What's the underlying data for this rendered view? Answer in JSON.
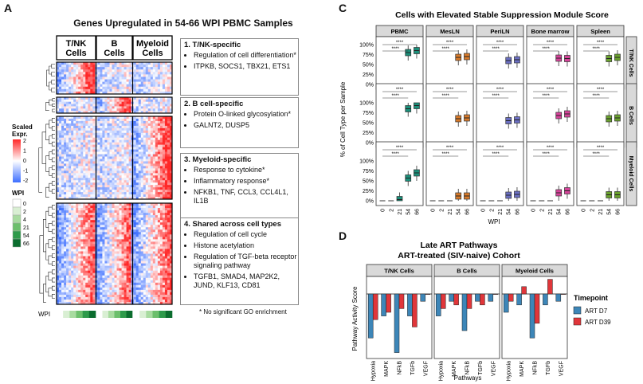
{
  "panels": {
    "a": "A",
    "c": "C",
    "d": "D"
  },
  "heatmap": {
    "title": "Genes Upregulated in 54-66 WPI PBMC Samples",
    "col_groups": [
      "T/NK Cells",
      "B Cells",
      "Myeloid Cells"
    ],
    "legend_title": "Scaled Expr.",
    "legend_ticks": [
      "2",
      "1",
      "0",
      "-1",
      "-2"
    ],
    "wpi_title": "WPI",
    "wpi_levels": [
      "0",
      "2",
      "4",
      "21",
      "54",
      "66"
    ],
    "wpi_colors": [
      "#ffffff",
      "#d9efd3",
      "#a8dba0",
      "#6cbf6c",
      "#2e9a4a",
      "#0b6d2e"
    ],
    "wpi_row_label": "WPI",
    "footnote": "* No significant GO enrichment",
    "sections": [
      {
        "title": "1. T/NK-specific",
        "items": [
          "Regulation of cell differentiation*",
          "ITPKB, SOCS1, TBX21, ETS1"
        ]
      },
      {
        "title": "2. B cell-specific",
        "items": [
          "Protein O-linked glycosylation*",
          "GALNT2, DUSP5"
        ]
      },
      {
        "title": "3. Myeloid-specific",
        "items": [
          "Response to cytokine*",
          "Inflammatory response*",
          "NFKB1, TNF, CCL3, CCL4L1, IL1B"
        ]
      },
      {
        "title": "4. Shared across cell types",
        "items": [
          "Regulation of cell cycle",
          "Histone acetylation",
          "Regulation of TGF-beta receptor signaling pathway",
          "TGFB1, SMAD4, MAP2K2, JUND, KLF13, CD81"
        ]
      }
    ]
  },
  "chart_data": [
    {
      "type": "box",
      "title": "Cells with Elevated Stable Suppression Module Score",
      "xlabel": "WPI",
      "ylabel": "% of Cell Type per Sample",
      "x_categories": [
        "0",
        "2",
        "21",
        "54",
        "66"
      ],
      "y_ticks": [
        "0%",
        "25%",
        "50%",
        "75%",
        "100%"
      ],
      "ylim": [
        0,
        100
      ],
      "columns": [
        "PBMC",
        "MesLN",
        "PeriLN",
        "Bone marrow",
        "Spleen"
      ],
      "rows": [
        "T/NK Cells",
        "B Cells",
        "Myeloid Cells"
      ],
      "column_colors": [
        "#1b8f7a",
        "#d87a2a",
        "#6b6fc2",
        "#d6449a",
        "#6aa12e"
      ],
      "significance": "****",
      "grid": false,
      "medians": {
        "T/NK Cells": {
          "PBMC": [
            0,
            0,
            0,
            80,
            85
          ],
          "MesLN": [
            0,
            0,
            0,
            68,
            70
          ],
          "PeriLN": [
            0,
            0,
            0,
            60,
            62
          ],
          "Bone marrow": [
            0,
            0,
            0,
            66,
            65
          ],
          "Spleen": [
            0,
            0,
            0,
            65,
            68
          ]
        },
        "B Cells": {
          "PBMC": [
            0,
            0,
            0,
            85,
            93
          ],
          "MesLN": [
            0,
            0,
            0,
            60,
            62
          ],
          "PeriLN": [
            0,
            0,
            0,
            55,
            57
          ],
          "Bone marrow": [
            0,
            0,
            0,
            68,
            72
          ],
          "Spleen": [
            0,
            0,
            0,
            60,
            62
          ]
        },
        "Myeloid Cells": {
          "PBMC": [
            0,
            0,
            3,
            57,
            70
          ],
          "MesLN": [
            0,
            0,
            0,
            12,
            12
          ],
          "PeriLN": [
            0,
            0,
            0,
            14,
            16
          ],
          "Bone marrow": [
            0,
            0,
            0,
            20,
            25
          ],
          "Spleen": [
            0,
            0,
            0,
            15,
            15
          ]
        }
      }
    },
    {
      "type": "bar",
      "title": "Late ART Pathways",
      "subtitle": "ART-treated (SIV-naive) Cohort",
      "xlabel": "Pathways",
      "ylabel": "Pathway Activity Score",
      "categories": [
        "Hypoxia",
        "MAPK",
        "NFkB",
        "TGFb",
        "VEGF"
      ],
      "facets": [
        "T/NK Cells",
        "B Cells",
        "Myeloid Cells"
      ],
      "legend_title": "Timepoint",
      "legend_position": "right",
      "series": [
        {
          "name": "ART D7",
          "color": "#3d86b8",
          "values": {
            "T/NK Cells": [
              -6,
              -3,
              -8,
              -3,
              -1
            ],
            "B Cells": [
              -3,
              -1,
              -5,
              -1,
              -1
            ],
            "Myeloid Cells": [
              -2.5,
              -1.5,
              -6,
              -1.5,
              -1
            ]
          }
        },
        {
          "name": "ART D39",
          "color": "#e0363a",
          "values": {
            "T/NK Cells": [
              -3.5,
              -2.5,
              -2,
              -4.5,
              0
            ],
            "B Cells": [
              -2,
              -1.5,
              -2,
              -1.5,
              0
            ],
            "Myeloid Cells": [
              -1,
              1,
              -4,
              2,
              0
            ]
          }
        }
      ]
    }
  ]
}
